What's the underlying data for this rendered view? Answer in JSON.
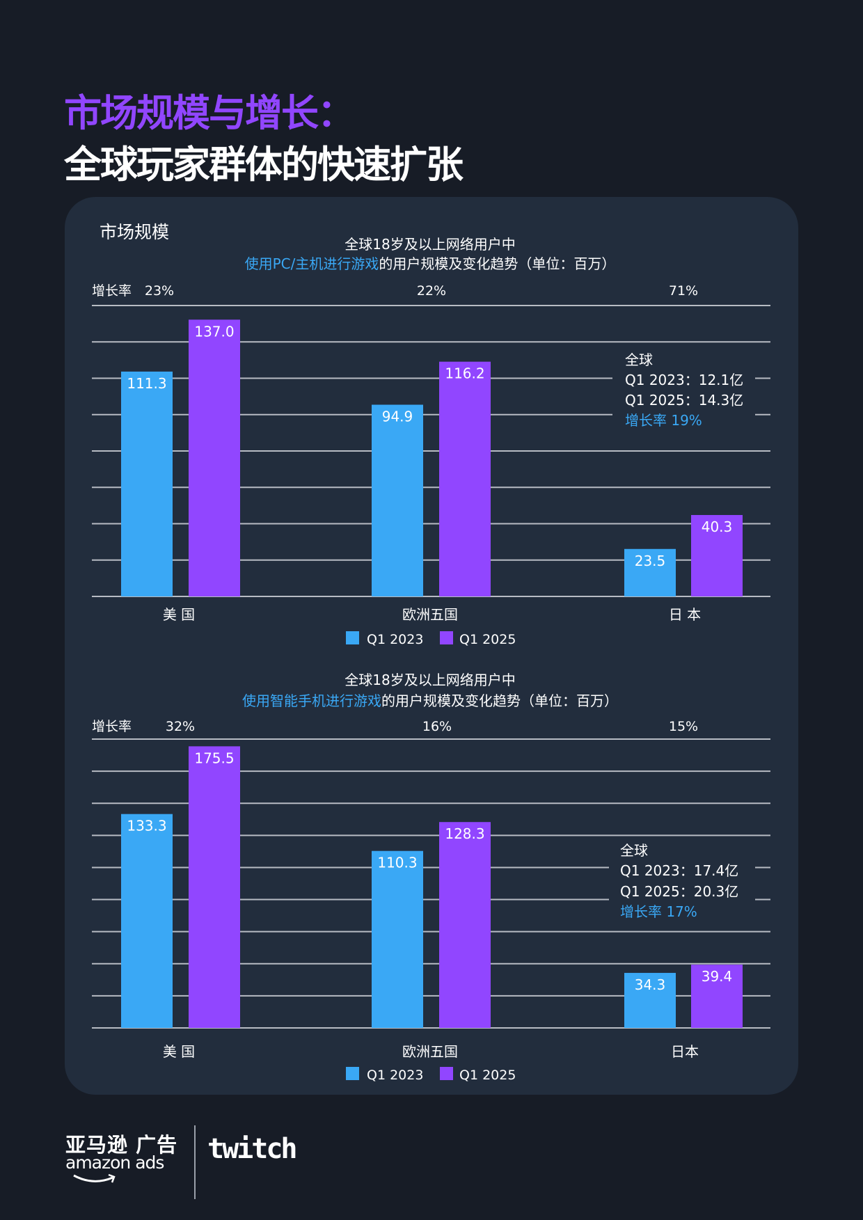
{
  "header": {
    "title_line1": "市场规模与增长：",
    "title_line2": "全球玩家群体的快速扩张"
  },
  "card": {
    "title": "市场规模"
  },
  "colors": {
    "background": "#171c26",
    "card": "#222d3d",
    "q1_2023": "#3aa8f5",
    "q1_2025": "#9146ff",
    "highlight_text": "#3aa8f5",
    "gridline": "#b8bcc4"
  },
  "chart_data": [
    {
      "type": "bar",
      "subtitle_line1": "全球18岁及以上网络用户中",
      "subtitle_highlight": "使用PC/主机进行游戏",
      "subtitle_rest": "的用户规模及变化趋势（单位：百万）",
      "growth_label": "增长率",
      "growth_rates": [
        "23%",
        "22%",
        "71%"
      ],
      "categories": [
        "美 国",
        "欧洲五国",
        "日 本"
      ],
      "series": [
        {
          "name": "Q1 2023",
          "values": [
            111.3,
            94.9,
            23.5
          ],
          "labels": [
            "111.3",
            "94.9",
            "23.5"
          ]
        },
        {
          "name": "Q1 2025",
          "values": [
            137.0,
            116.2,
            40.3
          ],
          "labels": [
            "137.0",
            "116.2",
            "40.3"
          ]
        }
      ],
      "ylim": [
        0,
        144
      ],
      "grid": true,
      "legend": "bottom-center",
      "annotation": {
        "title": "全球",
        "line1": "Q1 2023：12.1亿",
        "line2": "Q1 2025：14.3亿",
        "growth": "增长率  19%"
      }
    },
    {
      "type": "bar",
      "subtitle_line1": "全球18岁及以上网络用户中",
      "subtitle_highlight": "使用智能手机进行游戏",
      "subtitle_rest": "的用户规模及变化趋势（单位：百万）",
      "growth_label": "增长率",
      "growth_rates": [
        "32%",
        "16%",
        "15%"
      ],
      "categories": [
        "美 国",
        "欧洲五国",
        "日本"
      ],
      "series": [
        {
          "name": "Q1 2023",
          "values": [
            133.3,
            110.3,
            34.3
          ],
          "labels": [
            "133.3",
            "110.3",
            "34.3"
          ]
        },
        {
          "name": "Q1 2025",
          "values": [
            175.5,
            128.3,
            39.4
          ],
          "labels": [
            "175.5",
            "128.3",
            "39.4"
          ]
        }
      ],
      "ylim": [
        0,
        180
      ],
      "grid": true,
      "legend": "bottom-center",
      "annotation": {
        "title": "全球",
        "line1": "Q1 2023：17.4亿",
        "line2": "Q1 2025：20.3亿",
        "growth": "增长率  17%"
      }
    }
  ],
  "footer": {
    "amazon_cn": "亚马逊 广告",
    "amazon_en": "amazon ads",
    "twitch": "twitch"
  }
}
